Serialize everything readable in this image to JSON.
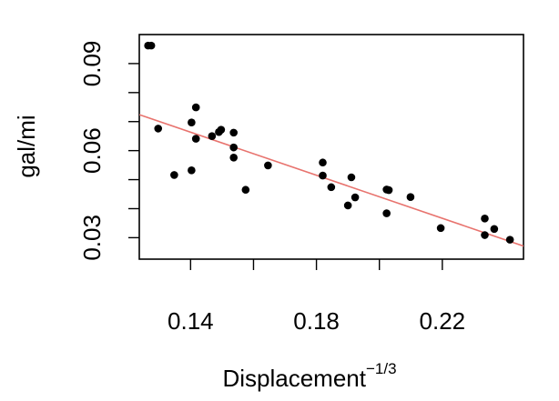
{
  "chart_data": {
    "type": "scatter",
    "title": "",
    "xlabel": "Displacement",
    "xlabel_exponent": "−1/3",
    "ylabel": "gal/mi",
    "xlim": [
      0.1237,
      0.2458
    ],
    "ylim": [
      0.0226,
      0.1
    ],
    "x_ticks": [
      0.14,
      0.18,
      0.22
    ],
    "x_tick_labels": [
      "0.14",
      "0.18",
      "0.22"
    ],
    "y_ticks": [
      0.03,
      0.06,
      0.09
    ],
    "y_tick_labels": [
      "0.03",
      "0.06",
      "0.09"
    ],
    "grid": false,
    "legend": "none",
    "point_color": "#000000",
    "fit_line_color": "#e8736e",
    "series": [
      {
        "values": [
          {
            "x": 0.1265,
            "y": 0.0962
          },
          {
            "x": 0.1275,
            "y": 0.0962
          },
          {
            "x": 0.1297,
            "y": 0.0676
          },
          {
            "x": 0.1348,
            "y": 0.0516
          },
          {
            "x": 0.1403,
            "y": 0.0697
          },
          {
            "x": 0.1417,
            "y": 0.0749
          },
          {
            "x": 0.1417,
            "y": 0.0641
          },
          {
            "x": 0.1403,
            "y": 0.0532
          },
          {
            "x": 0.1468,
            "y": 0.065
          },
          {
            "x": 0.149,
            "y": 0.0664
          },
          {
            "x": 0.1497,
            "y": 0.0672
          },
          {
            "x": 0.1537,
            "y": 0.0662
          },
          {
            "x": 0.1537,
            "y": 0.0611
          },
          {
            "x": 0.1537,
            "y": 0.0576
          },
          {
            "x": 0.1575,
            "y": 0.0465
          },
          {
            "x": 0.1646,
            "y": 0.0549
          },
          {
            "x": 0.182,
            "y": 0.0559
          },
          {
            "x": 0.182,
            "y": 0.0514
          },
          {
            "x": 0.1847,
            "y": 0.0474
          },
          {
            "x": 0.19,
            "y": 0.0411
          },
          {
            "x": 0.1911,
            "y": 0.0508
          },
          {
            "x": 0.1923,
            "y": 0.0439
          },
          {
            "x": 0.2023,
            "y": 0.0466
          },
          {
            "x": 0.203,
            "y": 0.0464
          },
          {
            "x": 0.2023,
            "y": 0.0384
          },
          {
            "x": 0.2099,
            "y": 0.044
          },
          {
            "x": 0.2195,
            "y": 0.0333
          },
          {
            "x": 0.2335,
            "y": 0.0366
          },
          {
            "x": 0.2335,
            "y": 0.0309
          },
          {
            "x": 0.2365,
            "y": 0.033
          },
          {
            "x": 0.2415,
            "y": 0.0293
          }
        ]
      }
    ],
    "fit_line": {
      "x": [
        0.1237,
        0.2458
      ],
      "y": [
        0.0724,
        0.0271
      ]
    }
  }
}
